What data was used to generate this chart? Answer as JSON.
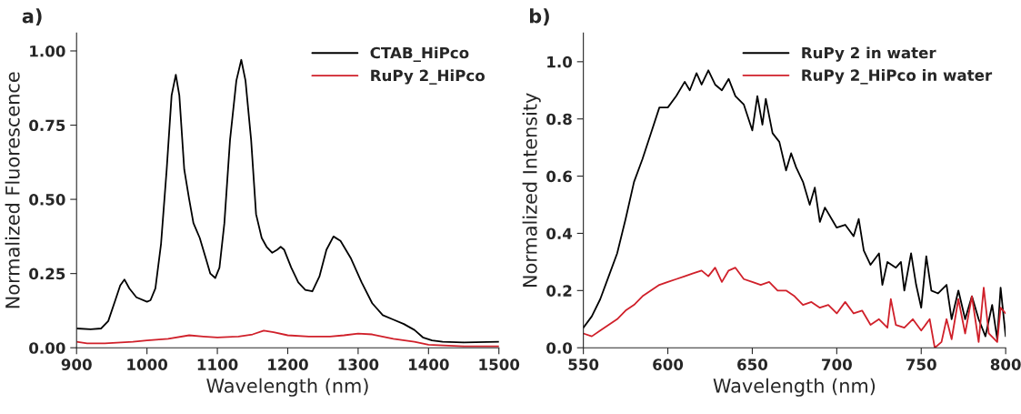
{
  "chart_data": [
    {
      "type": "line",
      "annotations": [
        "a)"
      ],
      "xlabel": "Wavelength (nm)",
      "ylabel": "Normalized Fluorescence",
      "xlim": [
        900,
        1500
      ],
      "ylim": [
        0,
        1.06
      ],
      "xticks": [
        900,
        1000,
        1100,
        1200,
        1300,
        1400,
        1500
      ],
      "yticks": [
        {
          "value": 0,
          "label": "0.00"
        },
        {
          "value": 0.25,
          "label": "0.25"
        },
        {
          "value": 0.5,
          "label": "0.50"
        },
        {
          "value": 0.75,
          "label": "0.75"
        },
        {
          "value": 1,
          "label": "1.00"
        }
      ],
      "legend": "top right",
      "grid": false,
      "series": [
        {
          "name": "CTAB_HiPco",
          "color": "#000000",
          "x": [
            900,
            920,
            935,
            945,
            955,
            962,
            968,
            975,
            985,
            1000,
            1005,
            1012,
            1020,
            1028,
            1035,
            1041,
            1046,
            1053,
            1060,
            1066,
            1075,
            1085,
            1090,
            1097,
            1103,
            1110,
            1118,
            1127,
            1134,
            1140,
            1148,
            1155,
            1163,
            1170,
            1178,
            1185,
            1190,
            1195,
            1205,
            1215,
            1225,
            1235,
            1245,
            1255,
            1265,
            1275,
            1290,
            1305,
            1320,
            1335,
            1350,
            1365,
            1380,
            1392,
            1405,
            1420,
            1450,
            1500
          ],
          "values": [
            0.065,
            0.062,
            0.065,
            0.09,
            0.16,
            0.21,
            0.23,
            0.2,
            0.17,
            0.155,
            0.16,
            0.2,
            0.35,
            0.6,
            0.85,
            0.92,
            0.85,
            0.6,
            0.5,
            0.42,
            0.37,
            0.29,
            0.25,
            0.235,
            0.27,
            0.42,
            0.7,
            0.9,
            0.97,
            0.9,
            0.7,
            0.45,
            0.37,
            0.34,
            0.32,
            0.33,
            0.34,
            0.33,
            0.27,
            0.22,
            0.195,
            0.19,
            0.24,
            0.33,
            0.375,
            0.36,
            0.3,
            0.22,
            0.15,
            0.11,
            0.095,
            0.08,
            0.06,
            0.035,
            0.025,
            0.02,
            0.018,
            0.02
          ]
        },
        {
          "name": "RuPy 2_HiPco",
          "color": "#d0202a",
          "x": [
            900,
            915,
            940,
            980,
            1000,
            1030,
            1060,
            1080,
            1100,
            1130,
            1150,
            1166,
            1180,
            1200,
            1230,
            1260,
            1280,
            1300,
            1320,
            1350,
            1380,
            1400,
            1450,
            1500
          ],
          "values": [
            0.02,
            0.015,
            0.015,
            0.02,
            0.025,
            0.03,
            0.042,
            0.038,
            0.035,
            0.038,
            0.045,
            0.058,
            0.052,
            0.042,
            0.038,
            0.038,
            0.042,
            0.048,
            0.045,
            0.03,
            0.02,
            0.01,
            0.005,
            0.005
          ]
        }
      ]
    },
    {
      "type": "line",
      "annotations": [
        "b)"
      ],
      "xlabel": "Wavelength (nm)",
      "ylabel": "Normalized Intensity",
      "xlim": [
        550,
        800
      ],
      "ylim": [
        0,
        1.1
      ],
      "xticks": [
        550,
        600,
        650,
        700,
        750,
        800
      ],
      "yticks": [
        {
          "value": 0,
          "label": "0.0"
        },
        {
          "value": 0.2,
          "label": "0.2"
        },
        {
          "value": 0.4,
          "label": "0.4"
        },
        {
          "value": 0.6,
          "label": "0.6"
        },
        {
          "value": 0.8,
          "label": "0.8"
        },
        {
          "value": 1,
          "label": "1.0"
        }
      ],
      "legend": "top right",
      "grid": false,
      "series": [
        {
          "name": "RuPy 2 in water",
          "color": "#000000",
          "x": [
            550,
            555,
            560,
            565,
            570,
            575,
            580,
            585,
            590,
            595,
            600,
            605,
            610,
            613,
            617,
            620,
            624,
            628,
            632,
            636,
            640,
            645,
            650,
            653,
            656,
            658,
            662,
            666,
            670,
            673,
            676,
            680,
            684,
            687,
            690,
            693,
            697,
            700,
            705,
            710,
            713,
            716,
            720,
            725,
            727,
            730,
            735,
            738,
            740,
            744,
            747,
            750,
            753,
            756,
            760,
            765,
            768,
            772,
            776,
            780,
            784,
            788,
            792,
            795,
            797,
            800
          ],
          "values": [
            0.07,
            0.11,
            0.17,
            0.25,
            0.33,
            0.45,
            0.58,
            0.66,
            0.75,
            0.84,
            0.84,
            0.88,
            0.93,
            0.9,
            0.96,
            0.92,
            0.97,
            0.92,
            0.9,
            0.94,
            0.88,
            0.85,
            0.76,
            0.88,
            0.78,
            0.87,
            0.75,
            0.72,
            0.62,
            0.68,
            0.63,
            0.58,
            0.5,
            0.56,
            0.44,
            0.49,
            0.45,
            0.42,
            0.43,
            0.39,
            0.45,
            0.34,
            0.29,
            0.33,
            0.22,
            0.3,
            0.28,
            0.3,
            0.2,
            0.33,
            0.22,
            0.14,
            0.32,
            0.2,
            0.19,
            0.22,
            0.1,
            0.2,
            0.1,
            0.18,
            0.1,
            0.04,
            0.15,
            0.03,
            0.21,
            0.04
          ]
        },
        {
          "name": "RuPy 2_HiPco in water",
          "color": "#d0202a",
          "x": [
            550,
            555,
            560,
            565,
            570,
            575,
            580,
            585,
            590,
            595,
            600,
            605,
            610,
            615,
            620,
            624,
            628,
            632,
            636,
            640,
            645,
            650,
            655,
            660,
            665,
            670,
            675,
            680,
            685,
            690,
            695,
            700,
            705,
            710,
            715,
            720,
            725,
            730,
            732,
            735,
            740,
            745,
            750,
            755,
            758,
            762,
            765,
            768,
            772,
            776,
            780,
            784,
            787,
            790,
            795,
            797,
            800
          ],
          "values": [
            0.05,
            0.04,
            0.06,
            0.08,
            0.1,
            0.13,
            0.15,
            0.18,
            0.2,
            0.22,
            0.23,
            0.24,
            0.25,
            0.26,
            0.27,
            0.25,
            0.28,
            0.23,
            0.27,
            0.28,
            0.24,
            0.23,
            0.22,
            0.23,
            0.2,
            0.2,
            0.18,
            0.15,
            0.16,
            0.14,
            0.15,
            0.12,
            0.16,
            0.12,
            0.13,
            0.08,
            0.1,
            0.07,
            0.17,
            0.08,
            0.07,
            0.1,
            0.06,
            0.1,
            0.0,
            0.02,
            0.1,
            0.03,
            0.17,
            0.05,
            0.18,
            0.02,
            0.21,
            0.05,
            0.02,
            0.14,
            0.12
          ]
        }
      ]
    }
  ]
}
